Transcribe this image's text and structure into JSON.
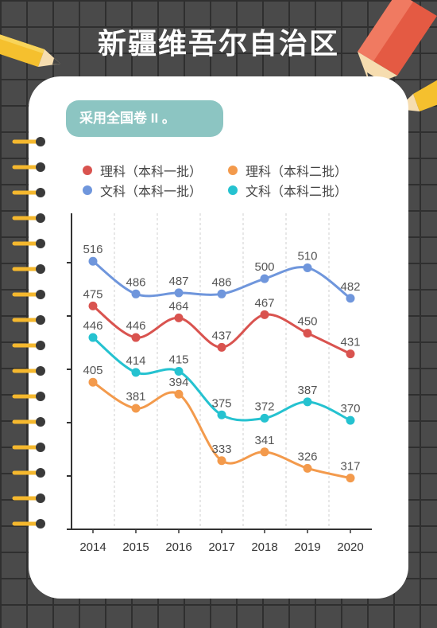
{
  "page": {
    "title": "新疆维吾尔自治区",
    "note": "采用全国卷 II 。"
  },
  "colors": {
    "background": "#4a4a4a",
    "card": "#ffffff",
    "note_badge": "#8cc5c2",
    "li_yiben": "#d9534f",
    "wen_yiben": "#6f96dc",
    "li_erben": "#f39a4c",
    "wen_erben": "#25c2d0"
  },
  "chart_data": {
    "type": "line",
    "title": "",
    "xlabel": "",
    "ylabel": "",
    "categories": [
      "2014",
      "2015",
      "2016",
      "2017",
      "2018",
      "2019",
      "2020"
    ],
    "ylim": [
      270,
      560
    ],
    "grid": "vertical dashed",
    "legend_position": "top",
    "series": [
      {
        "name": "理科（本科一批）",
        "color": "#d9534f",
        "values": [
          475,
          446,
          464,
          437,
          467,
          450,
          431
        ]
      },
      {
        "name": "理科（本科二批）",
        "color": "#f39a4c",
        "values": [
          405,
          381,
          394,
          333,
          341,
          326,
          317
        ]
      },
      {
        "name": "文科（本科一批）",
        "color": "#6f96dc",
        "values": [
          516,
          486,
          487,
          486,
          500,
          510,
          482
        ]
      },
      {
        "name": "文科（本科二批）",
        "color": "#25c2d0",
        "values": [
          446,
          414,
          415,
          375,
          372,
          387,
          370
        ]
      }
    ]
  }
}
